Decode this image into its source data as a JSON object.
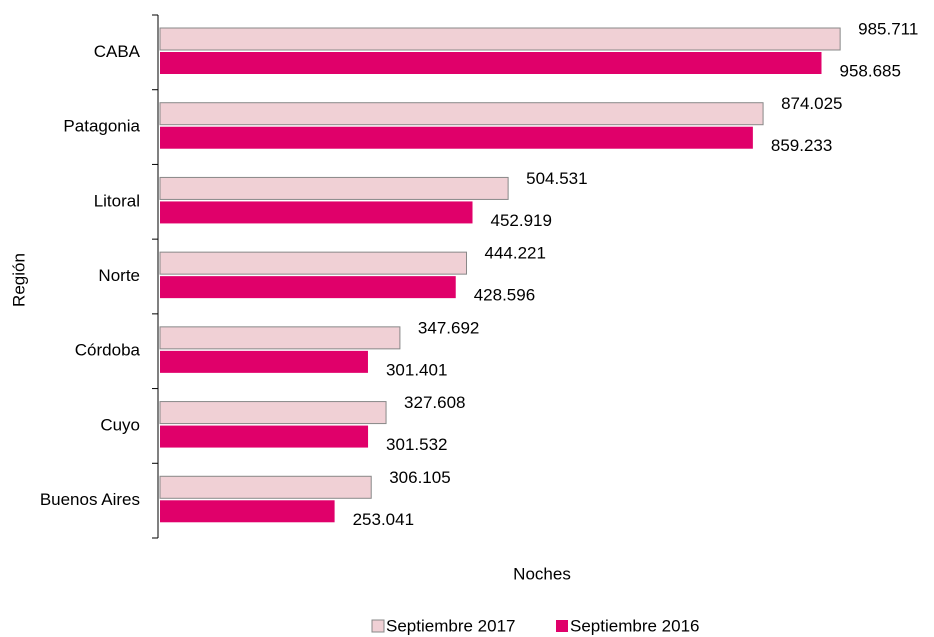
{
  "chart_data": {
    "type": "bar",
    "orientation": "horizontal",
    "y_label": "Región",
    "x_label": "Noches",
    "categories": [
      "CABA",
      "Patagonia",
      "Litoral",
      "Norte",
      "Córdoba",
      "Cuyo",
      "Buenos Aires"
    ],
    "series": [
      {
        "name": "Septiembre 2017",
        "color": "#f0d0d5",
        "values": [
          985711,
          874025,
          504531,
          444221,
          347692,
          327608,
          306105
        ],
        "value_labels": [
          "985.711",
          "874.025",
          "504.531",
          "444.221",
          "347.692",
          "327.608",
          "306.105"
        ]
      },
      {
        "name": "Septiembre 2016",
        "color": "#e0006a",
        "values": [
          958685,
          859233,
          452919,
          428596,
          301401,
          301532,
          253041
        ],
        "value_labels": [
          "958.685",
          "859.233",
          "452.919",
          "428.596",
          "301.401",
          "301.532",
          "253.041"
        ]
      }
    ],
    "xlim": [
      0,
      1000000
    ],
    "legend": "bottom"
  }
}
